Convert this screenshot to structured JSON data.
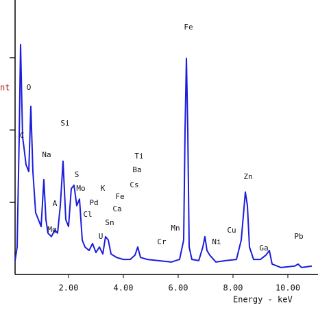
{
  "chart_data": {
    "type": "line",
    "y_label": "nt",
    "x_label": "Energy - keV",
    "x": [
      0.05,
      0.125,
      0.2,
      0.25,
      0.325,
      0.375,
      0.45,
      0.55,
      0.625,
      0.7,
      0.8,
      0.9,
      1.0,
      1.1,
      1.175,
      1.25,
      1.375,
      1.5,
      1.6,
      1.7,
      1.8,
      1.9,
      2.0,
      2.1,
      2.2,
      2.3,
      2.4,
      2.5,
      2.6,
      2.75,
      2.875,
      3.0,
      3.125,
      3.25,
      3.35,
      3.45,
      3.55,
      3.75,
      4.0,
      4.25,
      4.425,
      4.525,
      4.625,
      4.875,
      5.25,
      5.75,
      6.05,
      6.2,
      6.25,
      6.3,
      6.35,
      6.4,
      6.5,
      6.75,
      6.9,
      6.975,
      7.05,
      7.15,
      7.375,
      7.75,
      8.125,
      8.3,
      8.45,
      8.525,
      8.6,
      8.75,
      9.0,
      9.2,
      9.325,
      9.425,
      9.75,
      10.25,
      10.375,
      10.5,
      10.875
    ],
    "series": [
      {
        "color": "#1c1cdc",
        "values": [
          4.8,
          9.5,
          47.5,
          79.6,
          47.5,
          43.9,
          38.0,
          35.6,
          58.2,
          35.6,
          21.4,
          19.0,
          16.6,
          32.8,
          19.0,
          14.3,
          13.1,
          15.4,
          14.3,
          23.8,
          39.2,
          19.0,
          16.6,
          29.7,
          30.9,
          23.8,
          26.1,
          11.9,
          9.5,
          8.3,
          10.7,
          7.6,
          9.5,
          7.1,
          13.1,
          11.9,
          7.1,
          5.9,
          5.2,
          5.2,
          6.7,
          9.5,
          5.9,
          5.2,
          4.8,
          4.3,
          5.2,
          11.9,
          49.9,
          74.8,
          49.9,
          9.5,
          5.2,
          4.8,
          9.5,
          13.1,
          8.3,
          6.7,
          4.3,
          4.8,
          5.2,
          11.9,
          28.5,
          23.8,
          9.5,
          5.2,
          5.2,
          6.7,
          8.3,
          3.6,
          2.4,
          2.9,
          3.6,
          2.4,
          2.9
        ]
      }
    ],
    "xlim": [
      0,
      11.1
    ],
    "ylim": [
      0,
      95
    ],
    "xticks": [
      {
        "value": 2,
        "label": "2.00"
      },
      {
        "value": 4,
        "label": "4.00"
      },
      {
        "value": 6,
        "label": "6.00"
      },
      {
        "value": 8,
        "label": "8.00"
      },
      {
        "value": 10,
        "label": "10.00"
      }
    ],
    "yticks": [
      25,
      50,
      75
    ],
    "annotations": [
      "Fe",
      "O",
      "Si",
      "Na",
      "C",
      "S",
      "Mo",
      "K",
      "Pd",
      "Cl",
      "Sn",
      "U",
      "Ti",
      "Ba",
      "Cs",
      "Fe",
      "Ca",
      "A",
      "Mg",
      "Cr",
      "Mn",
      "Ni",
      "Cu",
      "Zn",
      "Ga",
      "Pb"
    ]
  }
}
